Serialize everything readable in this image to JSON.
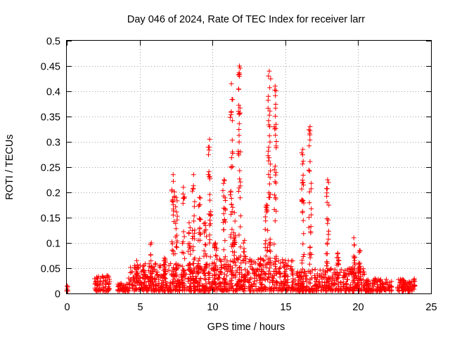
{
  "chart_data": {
    "type": "scatter",
    "title": "Day 046 of 2024, Rate Of TEC Index for receiver larr",
    "xlabel": "GPS time / hours",
    "ylabel": "ROTI / TECUs",
    "xlim": [
      0,
      25
    ],
    "ylim": [
      0,
      0.5
    ],
    "xticks": [
      0,
      5,
      10,
      15,
      20,
      25
    ],
    "yticks": [
      0,
      0.05,
      0.1,
      0.15,
      0.2,
      0.25,
      0.3,
      0.35,
      0.4,
      0.45,
      0.5
    ],
    "xtick_labels": [
      "0",
      "5",
      "10",
      "15",
      "20",
      "25"
    ],
    "ytick_labels": [
      "0",
      "0.05",
      "0.1",
      "0.15",
      "0.2",
      "0.25",
      "0.3",
      "0.35",
      "0.4",
      "0.45",
      "0.5"
    ],
    "grid": true,
    "marker": "+",
    "series_color": "#ff0000",
    "segments": [
      {
        "x": [
          0.0,
          0.1
        ],
        "lo": 0.005,
        "hi": 0.015
      },
      {
        "x": [
          1.9,
          2.95
        ],
        "lo": 0.005,
        "hi": 0.035
      },
      {
        "x": [
          3.5,
          4.2
        ],
        "lo": 0.005,
        "hi": 0.02
      },
      {
        "x": [
          4.2,
          10.0
        ],
        "lo": 0.005,
        "hi": 0.06
      },
      {
        "x": [
          10.0,
          15.5
        ],
        "lo": 0.005,
        "hi": 0.07
      },
      {
        "x": [
          15.5,
          20.5
        ],
        "lo": 0.005,
        "hi": 0.05
      },
      {
        "x": [
          20.5,
          22.3
        ],
        "lo": 0.005,
        "hi": 0.03
      },
      {
        "x": [
          22.7,
          23.9
        ],
        "lo": 0.005,
        "hi": 0.03
      }
    ],
    "spikes": [
      {
        "x": 4.8,
        "peak": 0.065
      },
      {
        "x": 5.3,
        "peak": 0.055
      },
      {
        "x": 5.8,
        "peak": 0.1
      },
      {
        "x": 6.7,
        "peak": 0.07
      },
      {
        "x": 7.3,
        "peak": 0.235
      },
      {
        "x": 7.5,
        "peak": 0.19
      },
      {
        "x": 8.0,
        "peak": 0.21
      },
      {
        "x": 8.4,
        "peak": 0.14
      },
      {
        "x": 8.7,
        "peak": 0.235
      },
      {
        "x": 9.1,
        "peak": 0.19
      },
      {
        "x": 9.5,
        "peak": 0.14
      },
      {
        "x": 9.8,
        "peak": 0.305
      },
      {
        "x": 10.2,
        "peak": 0.1
      },
      {
        "x": 10.8,
        "peak": 0.225
      },
      {
        "x": 11.3,
        "peak": 0.415
      },
      {
        "x": 11.5,
        "peak": 0.16
      },
      {
        "x": 11.85,
        "peak": 0.45
      },
      {
        "x": 12.2,
        "peak": 0.105
      },
      {
        "x": 13.3,
        "peak": 0.07
      },
      {
        "x": 13.7,
        "peak": 0.175
      },
      {
        "x": 13.9,
        "peak": 0.44
      },
      {
        "x": 14.3,
        "peak": 0.41
      },
      {
        "x": 15.0,
        "peak": 0.06
      },
      {
        "x": 16.2,
        "peak": 0.285
      },
      {
        "x": 16.7,
        "peak": 0.33
      },
      {
        "x": 17.9,
        "peak": 0.225
      },
      {
        "x": 18.6,
        "peak": 0.08
      },
      {
        "x": 19.7,
        "peak": 0.11
      },
      {
        "x": 20.1,
        "peak": 0.085
      }
    ]
  }
}
